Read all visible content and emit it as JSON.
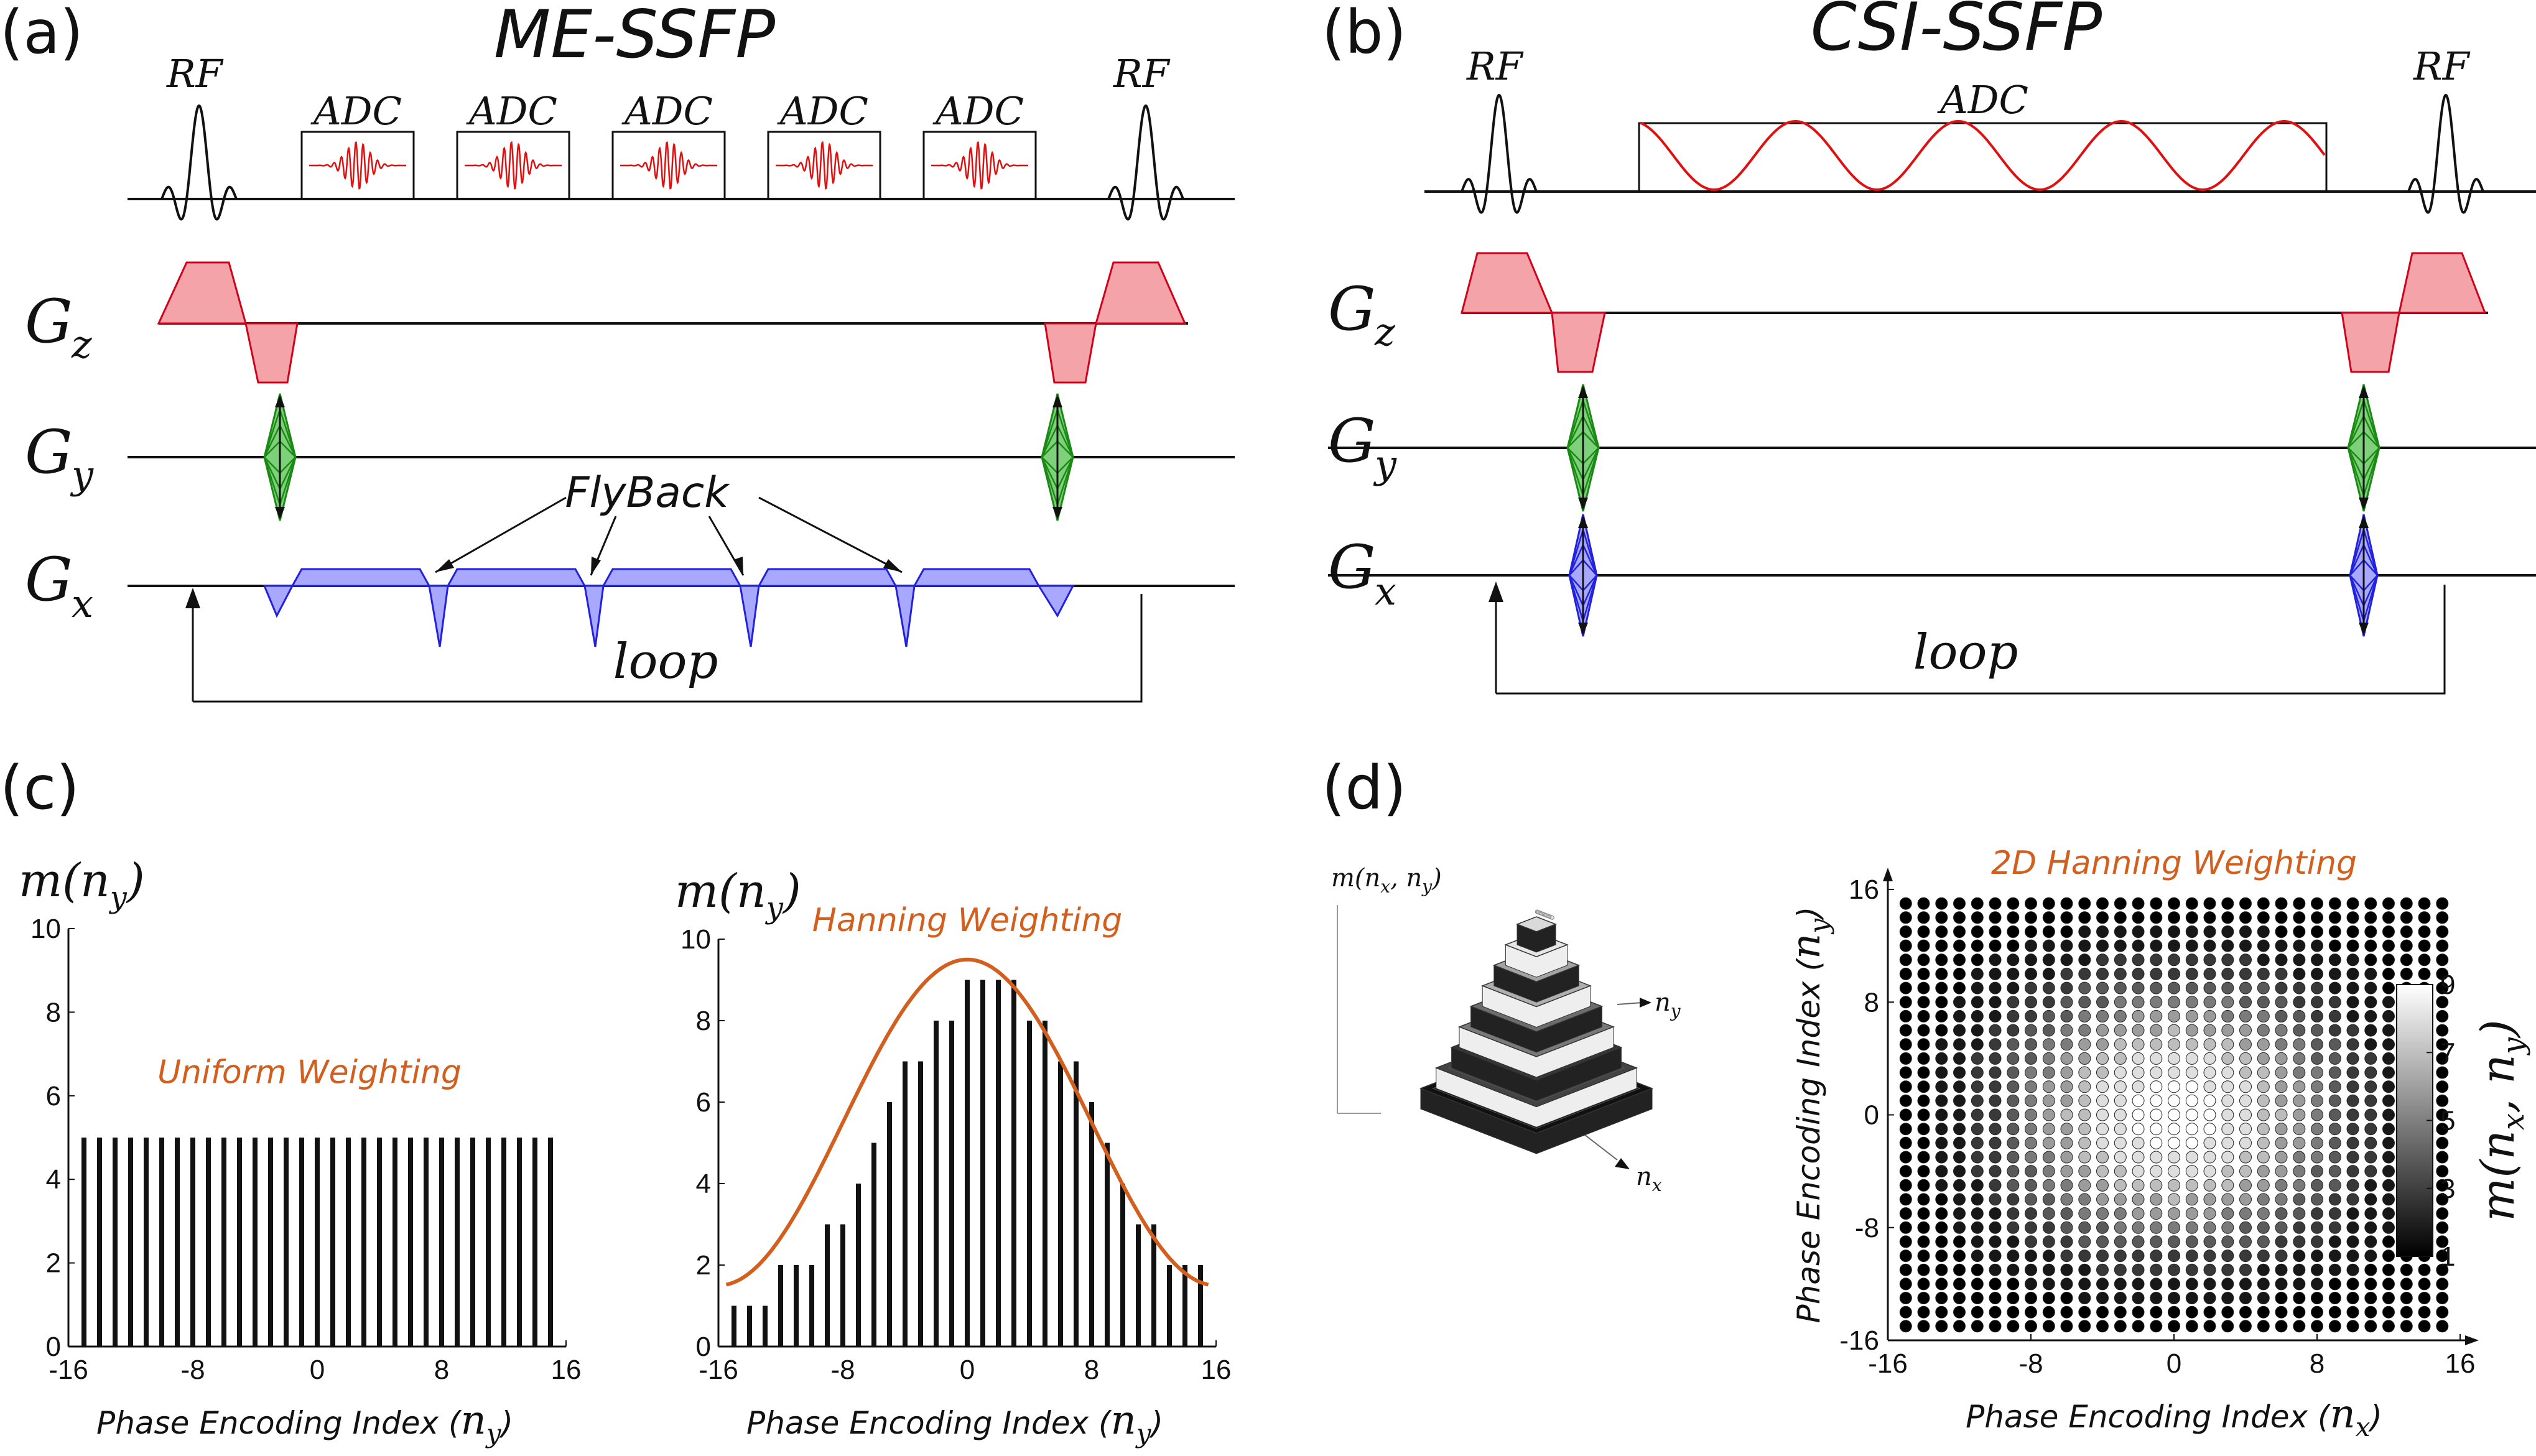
{
  "panels": {
    "a": {
      "label": "(a)",
      "title": "ME-SSFP",
      "rf": "RF",
      "adc": "ADC",
      "flyback": "FlyBack",
      "loop": "loop"
    },
    "b": {
      "label": "(b)",
      "title": "CSI-SSFP",
      "rf": "RF",
      "adc": "ADC",
      "loop": "loop"
    },
    "c": {
      "label": "(c)"
    },
    "d": {
      "label": "(d)"
    }
  },
  "gradients": {
    "G": "G",
    "z": "z",
    "y": "y",
    "x": "x"
  },
  "colors": {
    "slice": "#f4a3a8",
    "slice_stroke": "#d0021b",
    "phase": "#7fd07a",
    "phase_stroke": "#1a8a14",
    "read": "#a8a8ff",
    "read_stroke": "#2222dd",
    "accent": "#d35f1e",
    "adc_wave": "#e01010"
  },
  "chart_data": [
    {
      "type": "bar",
      "name": "uniform",
      "ylabel": "m(n_y)",
      "ylabel_base": "m(n",
      "ylabel_sub": "y",
      "ylabel_close": ")",
      "xlabel": "Phase Encoding Index",
      "xlabel_math": "n",
      "xlabel_sub": "y",
      "annotation": "Uniform Weighting",
      "x_ticks": [
        "-16",
        "-8",
        "0",
        "8",
        "16"
      ],
      "y_ticks": [
        "0",
        "2",
        "4",
        "6",
        "8",
        "10"
      ],
      "xlim": [
        -16,
        16
      ],
      "ylim": [
        0,
        10
      ],
      "x": [
        -15,
        -14,
        -13,
        -12,
        -11,
        -10,
        -9,
        -8,
        -7,
        -6,
        -5,
        -4,
        -3,
        -2,
        -1,
        0,
        1,
        2,
        3,
        4,
        5,
        6,
        7,
        8,
        9,
        10,
        11,
        12,
        13,
        14,
        15
      ],
      "values": [
        5,
        5,
        5,
        5,
        5,
        5,
        5,
        5,
        5,
        5,
        5,
        5,
        5,
        5,
        5,
        5,
        5,
        5,
        5,
        5,
        5,
        5,
        5,
        5,
        5,
        5,
        5,
        5,
        5,
        5,
        5
      ]
    },
    {
      "type": "bar",
      "name": "hanning",
      "ylabel": "m(n_y)",
      "ylabel_base": "m(n",
      "ylabel_sub": "y",
      "ylabel_close": ")",
      "xlabel": "Phase Encoding Index",
      "xlabel_math": "n",
      "xlabel_sub": "y",
      "annotation": "Hanning Weighting",
      "x_ticks": [
        "-16",
        "-8",
        "0",
        "8",
        "16"
      ],
      "y_ticks": [
        "0",
        "2",
        "4",
        "6",
        "8",
        "10"
      ],
      "xlim": [
        -16,
        16
      ],
      "ylim": [
        0,
        10
      ],
      "x": [
        -15,
        -14,
        -13,
        -12,
        -11,
        -10,
        -9,
        -8,
        -7,
        -6,
        -5,
        -4,
        -3,
        -2,
        -1,
        0,
        1,
        2,
        3,
        4,
        5,
        6,
        7,
        8,
        9,
        10,
        11,
        12,
        13,
        14,
        15
      ],
      "values": [
        1,
        1,
        1,
        2,
        2,
        2,
        3,
        3,
        4,
        5,
        6,
        7,
        7,
        8,
        8,
        9,
        9,
        9,
        9,
        8,
        8,
        7,
        7,
        6,
        5,
        4,
        3,
        3,
        2,
        2,
        2
      ],
      "envelope_peak": 9.5,
      "envelope_floor": 1.5
    },
    {
      "type": "heatmap",
      "name": "2d-hanning",
      "title": "2D Hanning Weighting",
      "xlabel": "Phase Encoding Index",
      "xlabel_math": "n",
      "xlabel_sub": "x",
      "ylabel": "Phase Encoding Index",
      "ylabel_math": "n",
      "ylabel_sub": "y",
      "x_ticks": [
        "-16",
        "-8",
        "0",
        "8",
        "16"
      ],
      "y_ticks": [
        "16",
        "8",
        "0",
        "-8",
        "-16"
      ],
      "xlim": [
        -16,
        16
      ],
      "ylim": [
        -16,
        16
      ],
      "grid_range": [
        -15,
        15
      ],
      "colorbar_label": "m(n_x, n_y)",
      "colorbar_ticks": [
        "9",
        "7",
        "5",
        "3",
        "1"
      ],
      "value_range": [
        1,
        9
      ]
    },
    {
      "type": "surface",
      "name": "3d-weighting",
      "z_label": "m(n_x, n_y)",
      "x_label": "n_x",
      "y_label": "n_y"
    }
  ]
}
